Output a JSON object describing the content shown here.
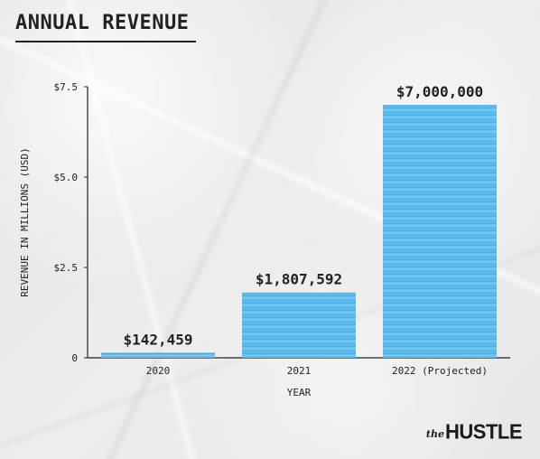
{
  "page": {
    "title": "ANNUAL REVENUE",
    "brand_small": "the",
    "brand_big": "HUSTLE"
  },
  "chart_data": {
    "type": "bar",
    "title": "ANNUAL REVENUE",
    "xlabel": "YEAR",
    "ylabel": "REVENUE IN MILLIONS (USD)",
    "categories": [
      "2020",
      "2021",
      "2022 (Projected)"
    ],
    "values": [
      0.142459,
      1.807592,
      7.0
    ],
    "value_labels": [
      "$142,459",
      "$1,807,592",
      "$7,000,000"
    ],
    "ylim": [
      0,
      7.5
    ],
    "yticks": [
      0,
      2.5,
      5.0,
      7.5
    ],
    "ytick_labels": [
      "0",
      "$2.5",
      "$5.0",
      "$7.5"
    ],
    "colors": {
      "bar": "#43aeea",
      "bar_light": "#6dc3f2",
      "axis": "#222222",
      "text": "#222222"
    }
  }
}
